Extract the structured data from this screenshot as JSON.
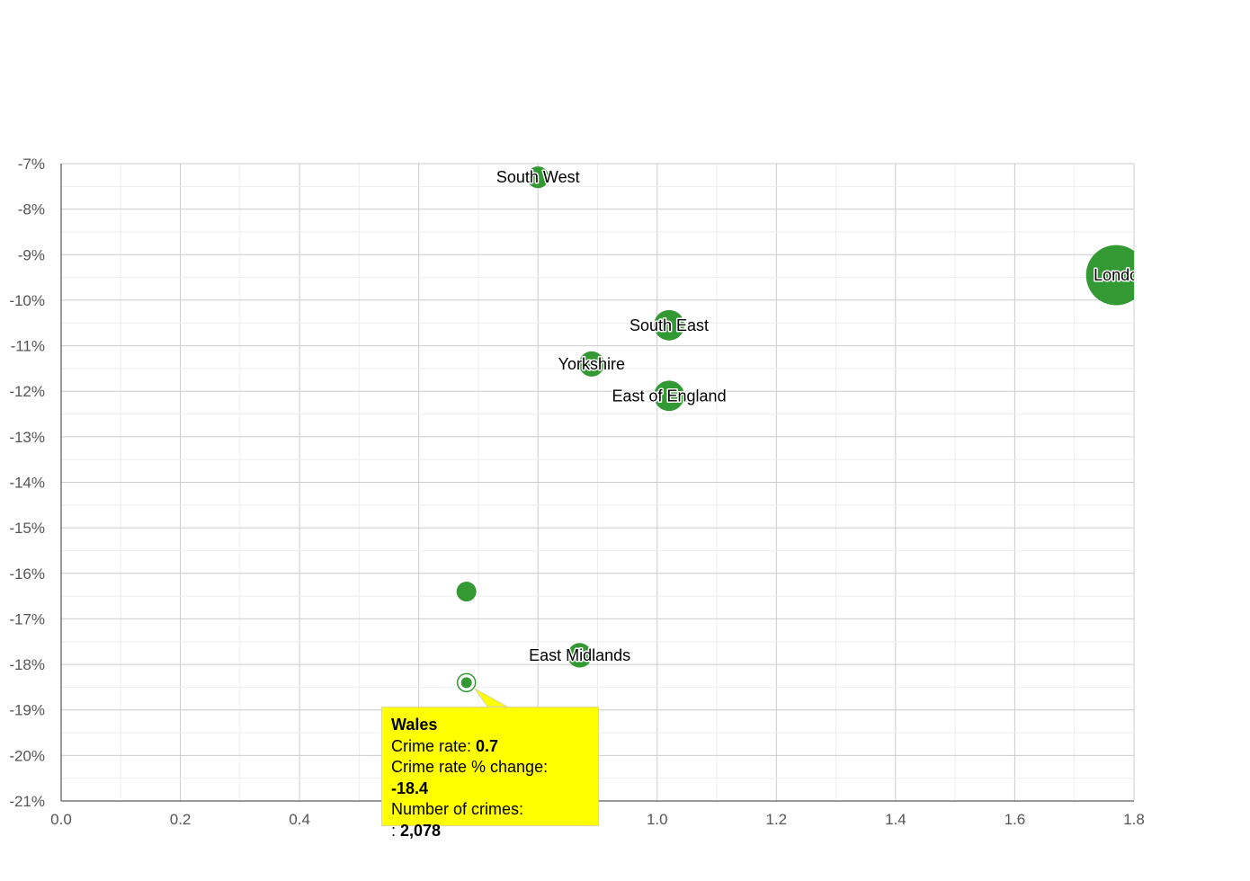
{
  "chart_data": {
    "type": "scatter",
    "title": "",
    "xlabel": "",
    "ylabel": "",
    "xlim": [
      0.0,
      1.8
    ],
    "ylim": [
      -21,
      -7
    ],
    "x_ticks": [
      0.0,
      0.2,
      0.4,
      0.6,
      0.8,
      1.0,
      1.2,
      1.4,
      1.6,
      1.8
    ],
    "x_tick_labels": [
      "0.0",
      "0.2",
      "0.4",
      "",
      "",
      "1.0",
      "1.2",
      "1.4",
      "1.6",
      "1.8"
    ],
    "y_ticks": [
      -7,
      -8,
      -9,
      -10,
      -11,
      -12,
      -13,
      -14,
      -15,
      -16,
      -17,
      -18,
      -19,
      -20,
      -21
    ],
    "y_tick_labels": [
      "-7%",
      "-8%",
      "-9%",
      "-10%",
      "-11%",
      "-12%",
      "-13%",
      "-14%",
      "-15%",
      "-16%",
      "-17%",
      "-18%",
      "-19%",
      "-20%",
      "-21%"
    ],
    "grid": true,
    "point_color": "#339933",
    "points": [
      {
        "label": "South West",
        "x": 0.8,
        "y": -7.3
      },
      {
        "label": "London",
        "display_label": "Londo",
        "x": 1.77,
        "y": -9.45
      },
      {
        "label": "South East",
        "x": 1.02,
        "y": -10.55
      },
      {
        "label": "Yorkshire",
        "x": 0.89,
        "y": -11.4
      },
      {
        "label": "East of England",
        "x": 1.02,
        "y": -12.1
      },
      {
        "label": "",
        "x": 0.68,
        "y": -16.4
      },
      {
        "label": "East Midlands",
        "x": 0.87,
        "y": -17.8
      },
      {
        "label": "Wales",
        "x": 0.68,
        "y": -18.4,
        "highlighted": true
      }
    ],
    "tooltip": {
      "name": "Wales",
      "line1_label": "Crime rate: ",
      "line1_value": "0.7",
      "line2_label": "Crime rate % change: ",
      "line2_value": "-18.4",
      "line3_label": "Number of crimes:",
      "line4_label": ": ",
      "line4_value": "2,078",
      "background": "#ffff00"
    }
  }
}
